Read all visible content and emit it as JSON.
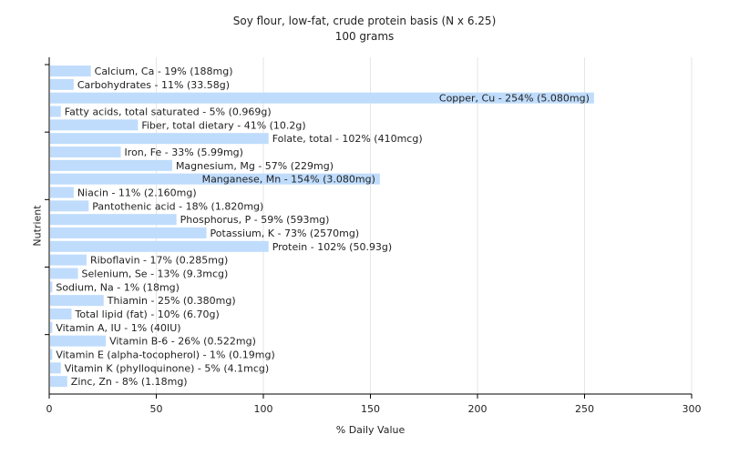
{
  "chart_data": {
    "type": "bar",
    "orientation": "horizontal",
    "title": "Soy flour, low-fat, crude protein basis (N x 6.25)",
    "subtitle": "100 grams",
    "xlabel": "% Daily Value",
    "ylabel": "Nutrient",
    "xlim": [
      0,
      300
    ],
    "xticks": [
      "0",
      "50",
      "100",
      "150",
      "200",
      "250",
      "300"
    ],
    "grid": true,
    "bar_color": "#bfdcfc",
    "categories": [
      "Calcium, Ca",
      "Carbohydrates",
      "Copper, Cu",
      "Fatty acids, total saturated",
      "Fiber, total dietary",
      "Folate, total",
      "Iron, Fe",
      "Magnesium, Mg",
      "Manganese, Mn",
      "Niacin",
      "Pantothenic acid",
      "Phosphorus, P",
      "Potassium, K",
      "Protein",
      "Riboflavin",
      "Selenium, Se",
      "Sodium, Na",
      "Thiamin",
      "Total lipid (fat)",
      "Vitamin A, IU",
      "Vitamin B-6",
      "Vitamin E (alpha-tocopherol)",
      "Vitamin K (phylloquinone)",
      "Zinc, Zn"
    ],
    "values": [
      19,
      11,
      254,
      5,
      41,
      102,
      33,
      57,
      154,
      11,
      18,
      59,
      73,
      102,
      17,
      13,
      1,
      25,
      10,
      1,
      26,
      1,
      5,
      8
    ],
    "labels": [
      "Calcium, Ca - 19% (188mg)",
      "Carbohydrates - 11% (33.58g)",
      "Copper, Cu - 254% (5.080mg)",
      "Fatty acids, total saturated - 5% (0.969g)",
      "Fiber, total dietary - 41% (10.2g)",
      "Folate, total - 102% (410mcg)",
      "Iron, Fe - 33% (5.99mg)",
      "Magnesium, Mg - 57% (229mg)",
      "Manganese, Mn - 154% (3.080mg)",
      "Niacin - 11% (2.160mg)",
      "Pantothenic acid - 18% (1.820mg)",
      "Phosphorus, P - 59% (593mg)",
      "Potassium, K - 73% (2570mg)",
      "Protein - 102% (50.93g)",
      "Riboflavin - 17% (0.285mg)",
      "Selenium, Se - 13% (9.3mcg)",
      "Sodium, Na - 1% (18mg)",
      "Thiamin - 25% (0.380mg)",
      "Total lipid (fat) - 10% (6.70g)",
      "Vitamin A, IU - 1% (40IU)",
      "Vitamin B-6 - 26% (0.522mg)",
      "Vitamin E (alpha-tocopherol) - 1% (0.19mg)",
      "Vitamin K (phylloquinone) - 5% (4.1mcg)",
      "Zinc, Zn - 8% (1.18mg)"
    ]
  }
}
